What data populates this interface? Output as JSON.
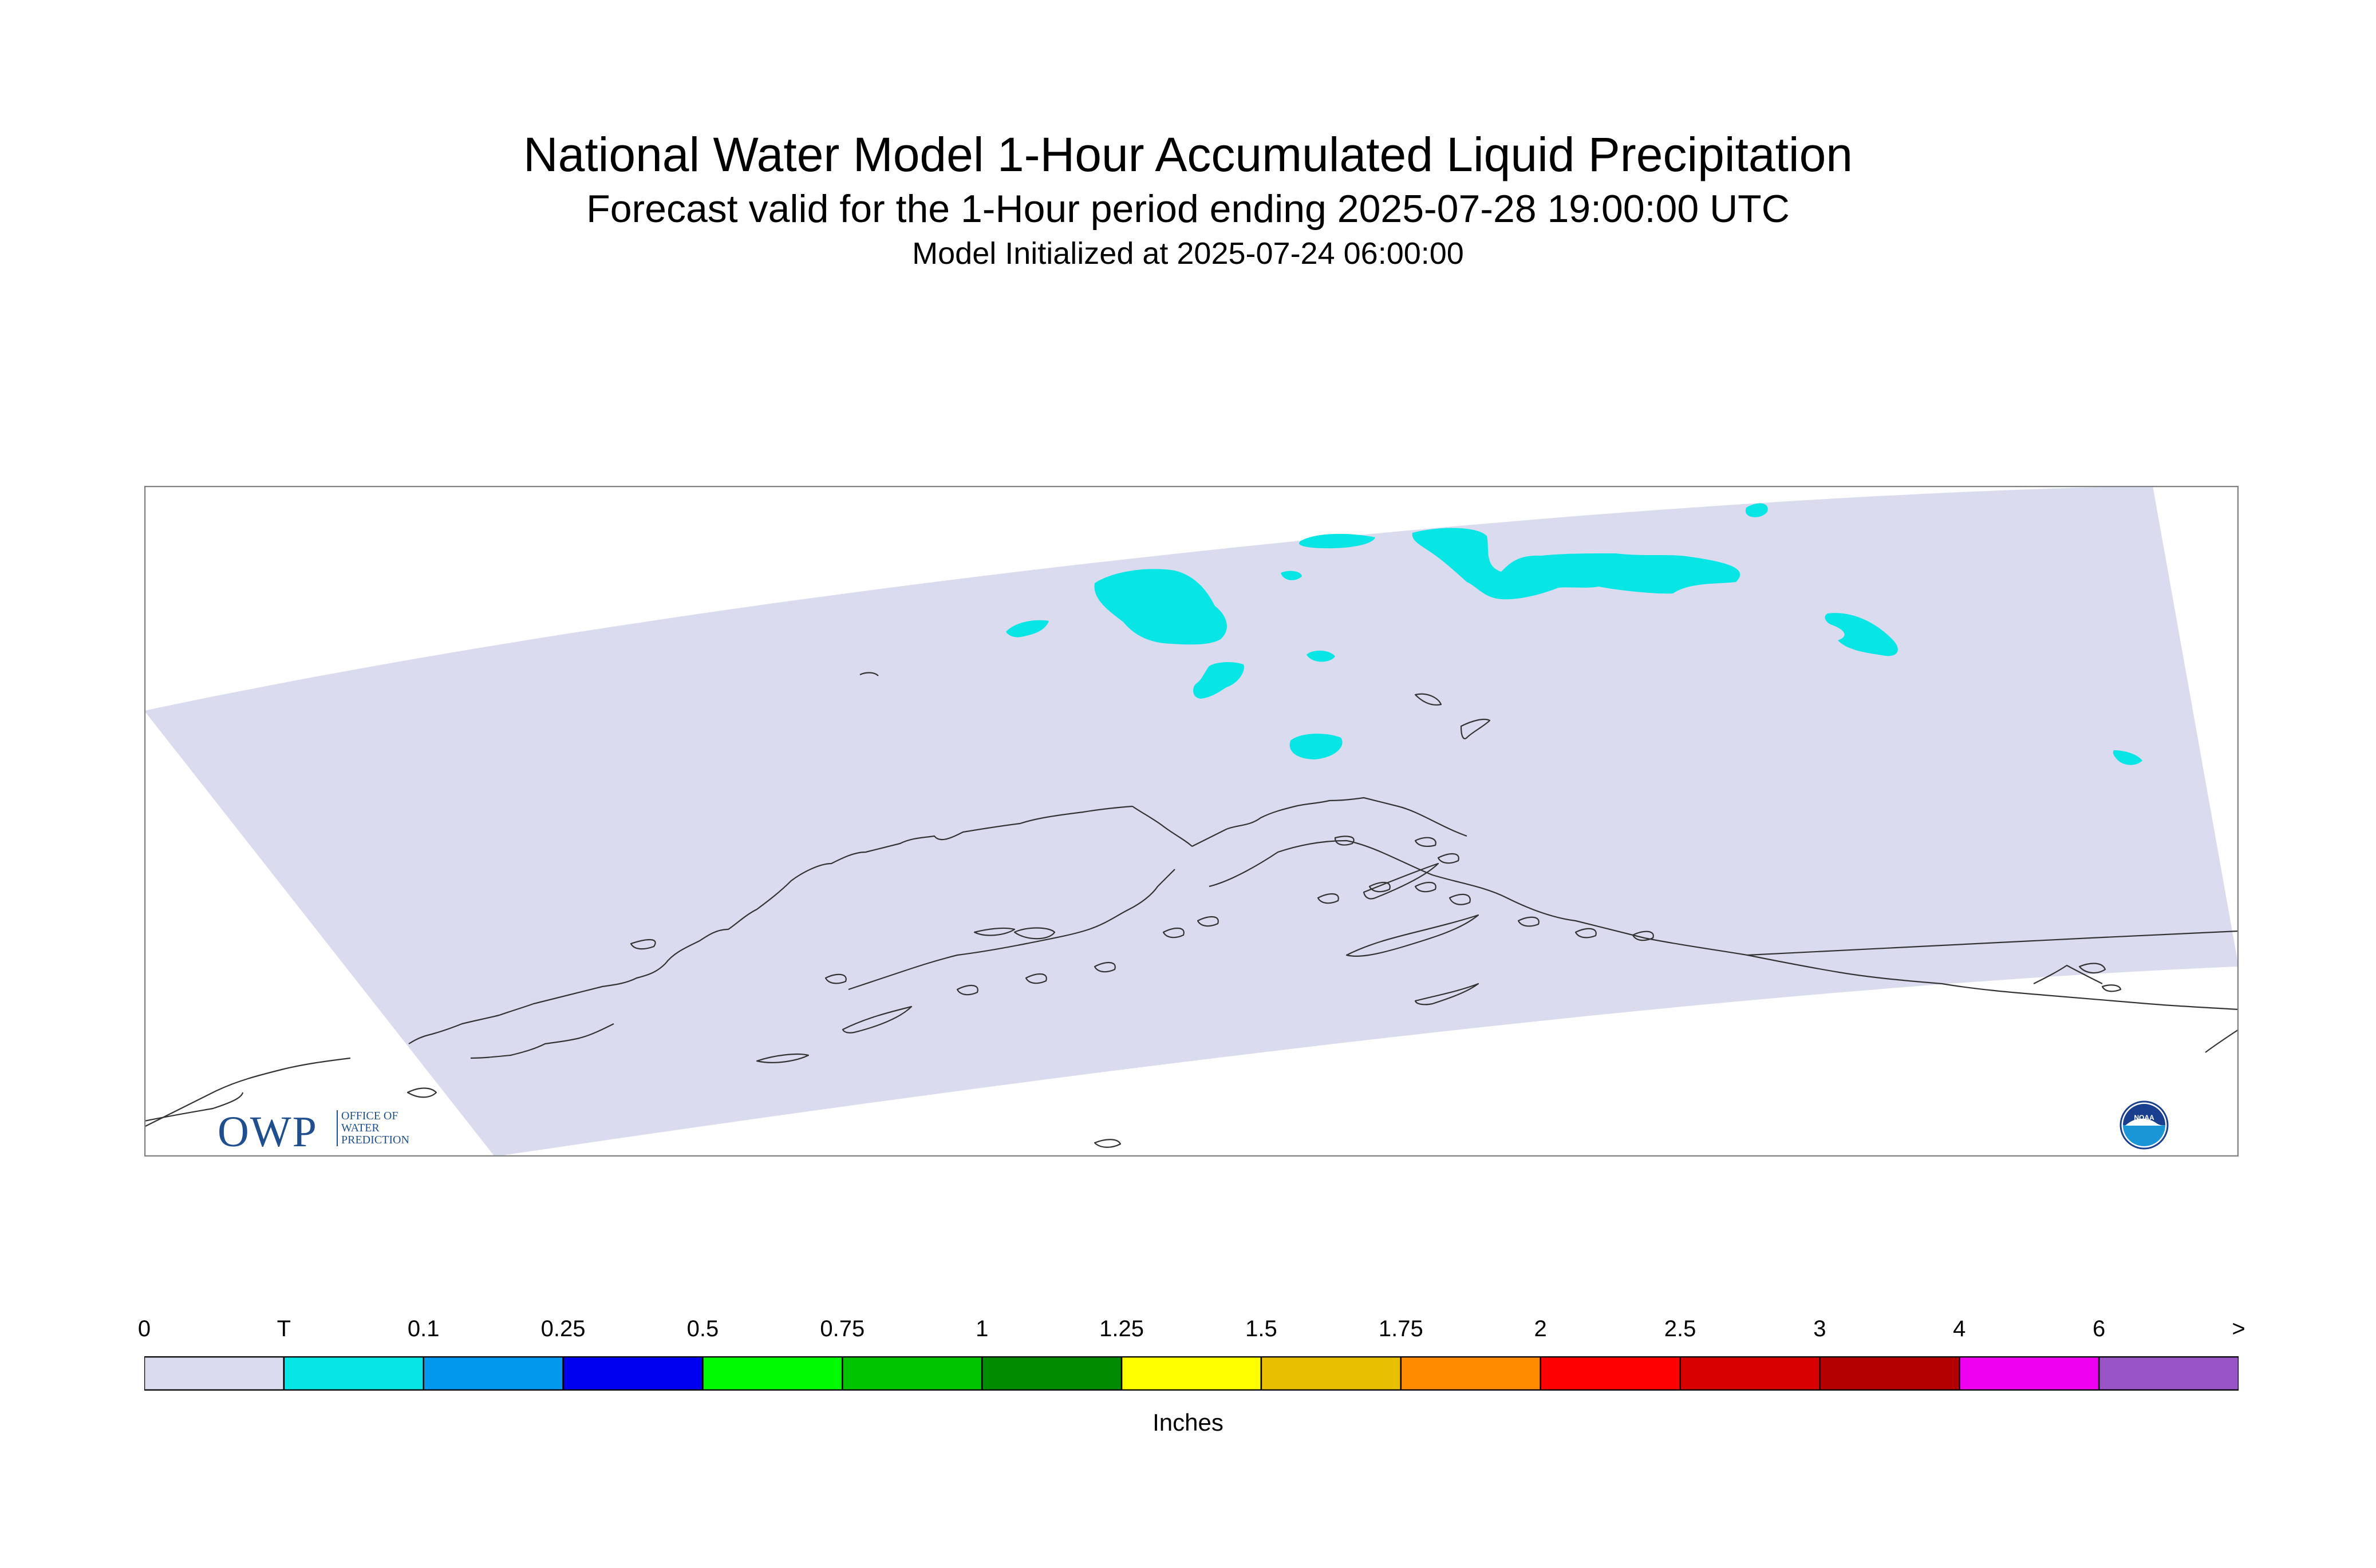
{
  "title": "National Water Model 1-Hour Accumulated Liquid Precipitation",
  "subtitle": "Forecast valid for the 1-Hour period ending 2025-07-28 19:00:00 UTC",
  "init_text": "Model Initialized at 2025-07-24 06:00:00",
  "legend": {
    "units": "Inches",
    "tick_labels": [
      "0",
      "T",
      "0.1",
      "0.25",
      "0.5",
      "0.75",
      "1",
      "1.25",
      "1.5",
      "1.75",
      "2",
      "2.5",
      "3",
      "4",
      "6",
      ">"
    ],
    "colors": [
      "#dadbee",
      "#08e5e5",
      "#0099ee",
      "#0000f0",
      "#00fa00",
      "#00c400",
      "#008c00",
      "#ffff00",
      "#e8c000",
      "#ff8c00",
      "#ff0000",
      "#d80000",
      "#b40000",
      "#f000f0",
      "#9955c8"
    ]
  },
  "logos": {
    "owp_text": "OWP",
    "owp_line1": "OFFICE OF",
    "owp_line2": "WATER",
    "owp_line3": "PREDICTION",
    "noaa_text": "NOAA",
    "owp_icon": "owp-logo",
    "noaa_icon": "noaa-logo"
  },
  "map_colors": {
    "domain_fill": "#dadbee",
    "precip_fill": "#08e5e5",
    "coast_stroke": "#333333",
    "frame_stroke": "#808080"
  }
}
